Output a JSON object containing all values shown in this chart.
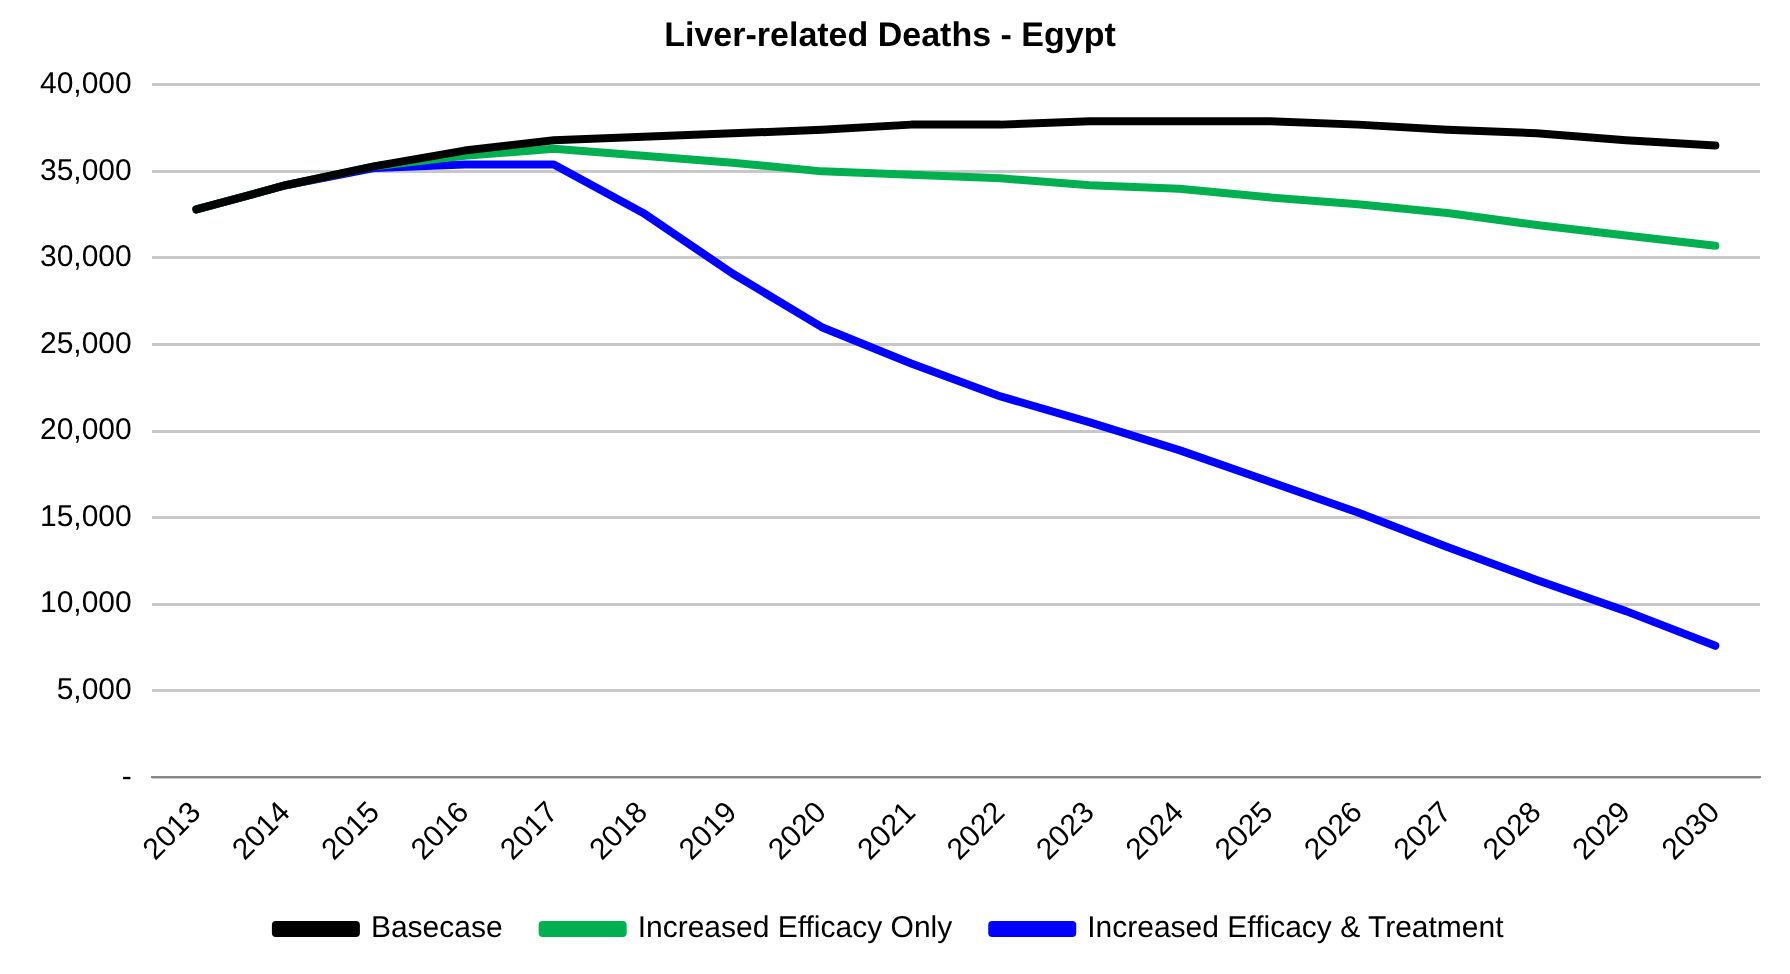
{
  "chart_data": {
    "type": "line",
    "title": "Liver-related Deaths - Egypt",
    "categories": [
      "2013",
      "2014",
      "2015",
      "2016",
      "2017",
      "2018",
      "2019",
      "2020",
      "2021",
      "2022",
      "2023",
      "2024",
      "2025",
      "2026",
      "2027",
      "2028",
      "2029",
      "2030"
    ],
    "series": [
      {
        "name": "Basecase",
        "color": "#000000",
        "values": [
          32800,
          34200,
          35300,
          36200,
          36800,
          37000,
          37200,
          37400,
          37700,
          37700,
          37900,
          37900,
          37900,
          37700,
          37400,
          37200,
          36800,
          36500
        ]
      },
      {
        "name": "Increased Efficacy Only",
        "color": "#00b050",
        "values": [
          32800,
          34200,
          35300,
          35900,
          36300,
          35900,
          35500,
          35000,
          34800,
          34600,
          34200,
          34000,
          33500,
          33100,
          32600,
          31900,
          31300,
          30700
        ]
      },
      {
        "name": "Increased Efficacy & Treatment",
        "color": "#0000ff",
        "values": [
          32800,
          34200,
          35200,
          35400,
          35400,
          32600,
          29100,
          26000,
          23900,
          22000,
          20500,
          18900,
          17100,
          15300,
          13300,
          11400,
          9600,
          7600
        ]
      }
    ],
    "ylim": [
      0,
      40000
    ],
    "yticks": [
      {
        "value": 0,
        "label": "-"
      },
      {
        "value": 5000,
        "label": "5,000"
      },
      {
        "value": 10000,
        "label": "10,000"
      },
      {
        "value": 15000,
        "label": "15,000"
      },
      {
        "value": 20000,
        "label": "20,000"
      },
      {
        "value": 25000,
        "label": "25,000"
      },
      {
        "value": 30000,
        "label": "30,000"
      },
      {
        "value": 35000,
        "label": "35,000"
      },
      {
        "value": 40000,
        "label": "40,000"
      }
    ],
    "grid": "y",
    "legend": "bottom",
    "marker": "none",
    "line_style": "solid"
  }
}
